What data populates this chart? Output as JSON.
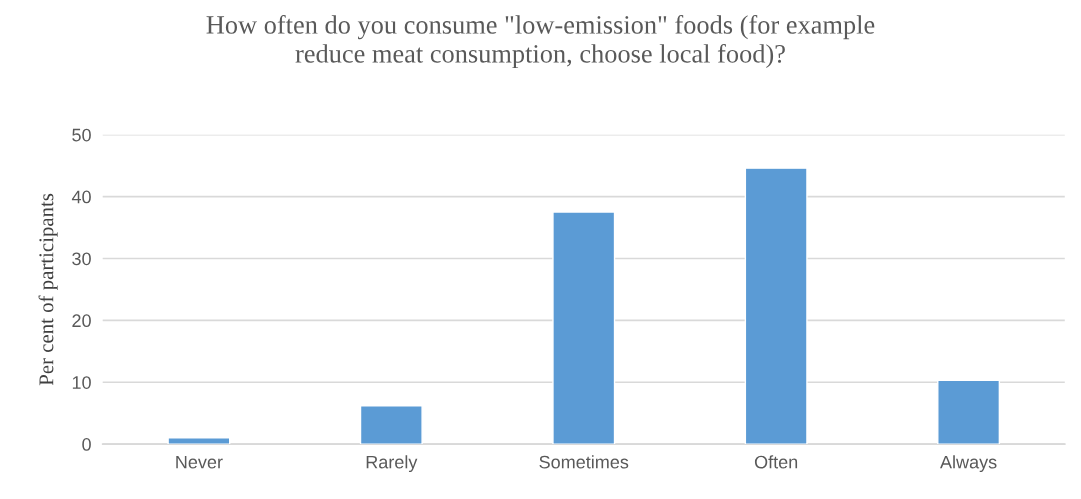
{
  "chart_data": {
    "type": "bar",
    "title": "How often do you consume \"low-emission\" foods (for example\nreduce meat consumption, choose local food)?",
    "ylabel": "Per cent of participants",
    "categories": [
      "Never",
      "Rarely",
      "Sometimes",
      "Often",
      "Always"
    ],
    "values": [
      1.0,
      6.2,
      37.5,
      44.6,
      10.3
    ],
    "color": "#5b9bd5",
    "ylim": [
      0,
      50
    ],
    "yticks": [
      0,
      10,
      20,
      30,
      40,
      50
    ],
    "grid": "y",
    "legend": false
  }
}
